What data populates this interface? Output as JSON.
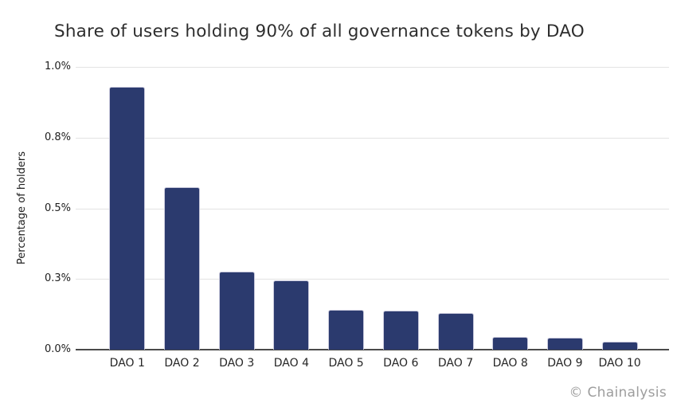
{
  "chart_data": {
    "type": "bar",
    "title": "Share of users holding 90% of all governance tokens by DAO",
    "ylabel": "Percentage of holders",
    "xlabel": "",
    "categories": [
      "DAO 1",
      "DAO 2",
      "DAO 3",
      "DAO 4",
      "DAO 5",
      "DAO 6",
      "DAO 7",
      "DAO 8",
      "DAO 9",
      "DAO 10"
    ],
    "values": [
      0.93,
      0.575,
      0.275,
      0.246,
      0.141,
      0.138,
      0.131,
      0.045,
      0.042,
      0.027
    ],
    "unit": "%",
    "ylim": [
      0,
      1.0
    ],
    "yticks": [
      {
        "value": 0.0,
        "label": "0.0%"
      },
      {
        "value": 0.25,
        "label": "0.3%"
      },
      {
        "value": 0.5,
        "label": "0.5%"
      },
      {
        "value": 0.75,
        "label": "0.8%"
      },
      {
        "value": 1.0,
        "label": "1.0%"
      }
    ],
    "grid": "horizontal",
    "legend": "none",
    "attribution": "© Chainalysis"
  },
  "colors": {
    "bar": "#2b3a6e",
    "bar_border": "#c9c9dc",
    "gridline": "#e3e3e3",
    "axis_line": "#4a4a4a",
    "title_text": "#2e2e2e",
    "tick_text": "#1e1e1e",
    "attribution_text": "#9d9d9d",
    "background": "#ffffff"
  }
}
